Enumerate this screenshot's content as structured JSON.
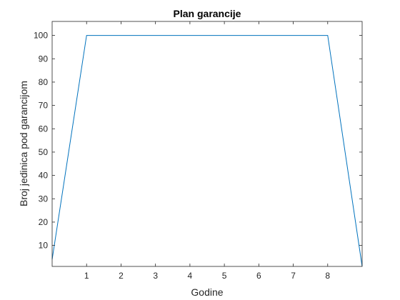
{
  "chart_data": {
    "type": "line",
    "title": "Plan garancije",
    "xlabel": "Godine",
    "ylabel": "Broj jedinica pod garancijom",
    "xlim": [
      0,
      9
    ],
    "ylim": [
      1,
      106
    ],
    "x_ticks": [
      1,
      2,
      3,
      4,
      5,
      6,
      7,
      8
    ],
    "y_ticks": [
      10,
      20,
      30,
      40,
      50,
      60,
      70,
      80,
      90,
      100
    ],
    "grid": false,
    "legend": "none",
    "series": [
      {
        "color": "#0072BD",
        "x": [
          0,
          1,
          8,
          9
        ],
        "y": [
          4,
          100,
          100,
          1
        ]
      }
    ]
  }
}
